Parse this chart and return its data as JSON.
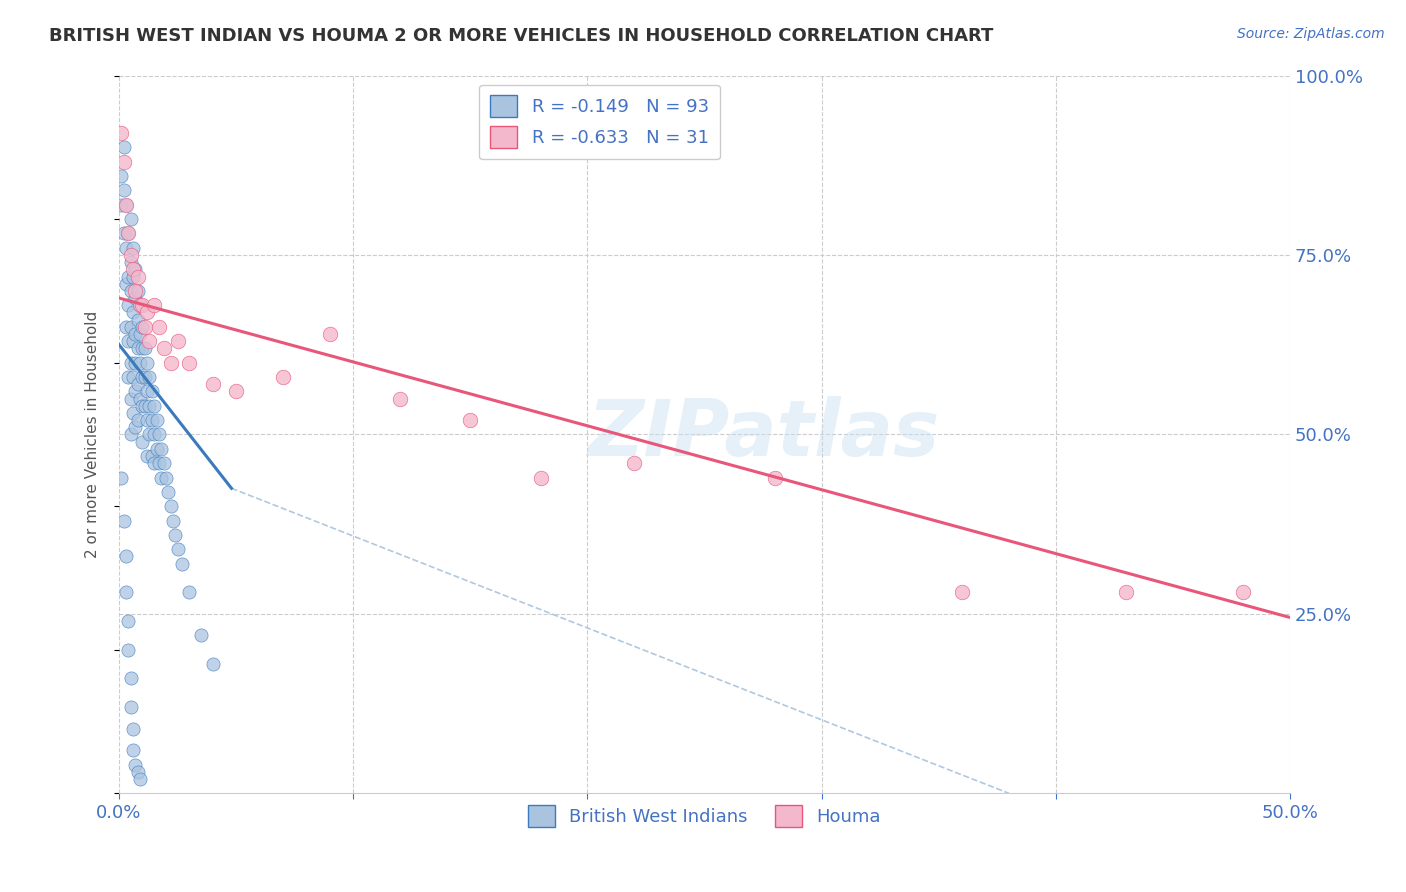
{
  "title": "BRITISH WEST INDIAN VS HOUMA 2 OR MORE VEHICLES IN HOUSEHOLD CORRELATION CHART",
  "source_text": "Source: ZipAtlas.com",
  "ylabel": "2 or more Vehicles in Household",
  "xlim": [
    0.0,
    0.5
  ],
  "ylim": [
    0.0,
    1.0
  ],
  "grid_color": "#cccccc",
  "background_color": "#ffffff",
  "watermark": "ZIPatlas",
  "blue_scatter_color": "#aac4e0",
  "pink_scatter_color": "#f4b8cc",
  "blue_line_color": "#3a7abf",
  "pink_line_color": "#e8567a",
  "dashed_line_color": "#b0c8e0",
  "legend_R_blue": "R = -0.149",
  "legend_N_blue": "N = 93",
  "legend_R_pink": "R = -0.633",
  "legend_N_pink": "N = 31",
  "legend_label_blue": "British West Indians",
  "legend_label_pink": "Houma",
  "title_color": "#333333",
  "axis_label_color": "#555555",
  "right_tick_color": "#4472c4",
  "blue_scatter": {
    "x": [
      0.001,
      0.001,
      0.002,
      0.002,
      0.002,
      0.003,
      0.003,
      0.003,
      0.003,
      0.004,
      0.004,
      0.004,
      0.004,
      0.004,
      0.005,
      0.005,
      0.005,
      0.005,
      0.005,
      0.005,
      0.005,
      0.006,
      0.006,
      0.006,
      0.006,
      0.006,
      0.006,
      0.007,
      0.007,
      0.007,
      0.007,
      0.007,
      0.007,
      0.008,
      0.008,
      0.008,
      0.008,
      0.008,
      0.009,
      0.009,
      0.009,
      0.009,
      0.01,
      0.01,
      0.01,
      0.01,
      0.01,
      0.011,
      0.011,
      0.011,
      0.012,
      0.012,
      0.012,
      0.012,
      0.013,
      0.013,
      0.013,
      0.014,
      0.014,
      0.014,
      0.015,
      0.015,
      0.015,
      0.016,
      0.016,
      0.017,
      0.017,
      0.018,
      0.018,
      0.019,
      0.02,
      0.021,
      0.022,
      0.023,
      0.024,
      0.025,
      0.027,
      0.03,
      0.035,
      0.04,
      0.001,
      0.002,
      0.003,
      0.003,
      0.004,
      0.004,
      0.005,
      0.005,
      0.006,
      0.006,
      0.007,
      0.008,
      0.009
    ],
    "y": [
      0.86,
      0.82,
      0.9,
      0.84,
      0.78,
      0.82,
      0.76,
      0.71,
      0.65,
      0.78,
      0.72,
      0.68,
      0.63,
      0.58,
      0.8,
      0.74,
      0.7,
      0.65,
      0.6,
      0.55,
      0.5,
      0.76,
      0.72,
      0.67,
      0.63,
      0.58,
      0.53,
      0.73,
      0.69,
      0.64,
      0.6,
      0.56,
      0.51,
      0.7,
      0.66,
      0.62,
      0.57,
      0.52,
      0.68,
      0.64,
      0.6,
      0.55,
      0.65,
      0.62,
      0.58,
      0.54,
      0.49,
      0.62,
      0.58,
      0.54,
      0.6,
      0.56,
      0.52,
      0.47,
      0.58,
      0.54,
      0.5,
      0.56,
      0.52,
      0.47,
      0.54,
      0.5,
      0.46,
      0.52,
      0.48,
      0.5,
      0.46,
      0.48,
      0.44,
      0.46,
      0.44,
      0.42,
      0.4,
      0.38,
      0.36,
      0.34,
      0.32,
      0.28,
      0.22,
      0.18,
      0.44,
      0.38,
      0.33,
      0.28,
      0.24,
      0.2,
      0.16,
      0.12,
      0.09,
      0.06,
      0.04,
      0.03,
      0.02
    ]
  },
  "pink_scatter": {
    "x": [
      0.001,
      0.002,
      0.003,
      0.004,
      0.005,
      0.006,
      0.007,
      0.008,
      0.009,
      0.01,
      0.011,
      0.012,
      0.013,
      0.015,
      0.017,
      0.019,
      0.022,
      0.025,
      0.03,
      0.04,
      0.05,
      0.07,
      0.09,
      0.12,
      0.15,
      0.18,
      0.22,
      0.28,
      0.36,
      0.43,
      0.48
    ],
    "y": [
      0.92,
      0.88,
      0.82,
      0.78,
      0.75,
      0.73,
      0.7,
      0.72,
      0.68,
      0.68,
      0.65,
      0.67,
      0.63,
      0.68,
      0.65,
      0.62,
      0.6,
      0.63,
      0.6,
      0.57,
      0.56,
      0.58,
      0.64,
      0.55,
      0.52,
      0.44,
      0.46,
      0.44,
      0.28,
      0.28,
      0.28
    ]
  },
  "blue_line": {
    "x0": 0.0,
    "x1": 0.048,
    "y0": 0.625,
    "y1": 0.425
  },
  "pink_line": {
    "x0": 0.0,
    "x1": 0.5,
    "y0": 0.69,
    "y1": 0.245
  },
  "dashed_line": {
    "x0": 0.048,
    "x1": 0.38,
    "y0": 0.425,
    "y1": 0.0
  }
}
